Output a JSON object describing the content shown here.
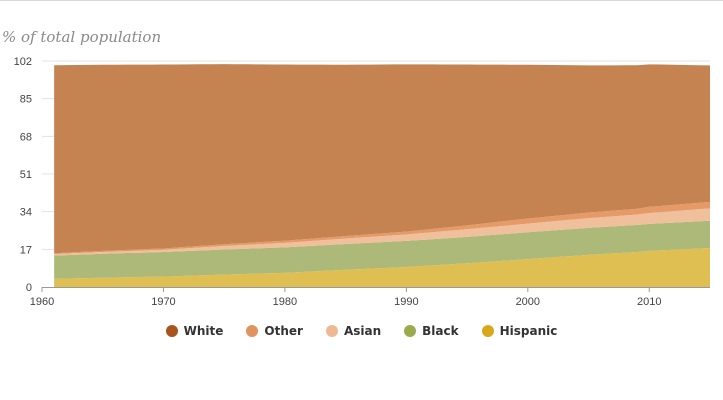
{
  "chart_data": {
    "type": "area",
    "stacked": true,
    "ylabel": "% of total population",
    "ylim": [
      0,
      102
    ],
    "yticks": [
      0,
      17,
      34,
      51,
      68,
      85,
      102
    ],
    "xlim": [
      1960,
      2015
    ],
    "xticks": [
      1960,
      1970,
      1980,
      1990,
      2000,
      2010
    ],
    "grid": true,
    "legend_position": "bottom",
    "x": [
      1960,
      1965,
      1970,
      1975,
      1980,
      1985,
      1990,
      1995,
      2000,
      2005,
      2009,
      2010,
      2015
    ],
    "series": [
      {
        "name": "Hispanic",
        "color": "#e0bf52",
        "values": [
          3.5,
          4.2,
          4.7,
          5.6,
          6.4,
          7.8,
          9.0,
          10.7,
          12.6,
          14.5,
          15.8,
          16.3,
          17.6
        ]
      },
      {
        "name": "Black",
        "color": "#adb978",
        "values": [
          10.5,
          10.8,
          11.1,
          11.3,
          11.5,
          11.6,
          11.8,
          11.9,
          12.1,
          12.2,
          12.2,
          12.2,
          12.3
        ]
      },
      {
        "name": "Asian",
        "color": "#f0c09c",
        "values": [
          0.6,
          0.8,
          1.0,
          1.6,
          2.0,
          2.5,
          2.9,
          3.5,
          3.9,
          4.4,
          4.7,
          4.9,
          5.6
        ]
      },
      {
        "name": "Other",
        "color": "#e59a67",
        "values": [
          0.4,
          0.5,
          0.6,
          0.8,
          1.0,
          1.1,
          1.3,
          1.7,
          2.3,
          2.5,
          2.6,
          2.8,
          2.9
        ]
      },
      {
        "name": "White",
        "color": "#c48350",
        "values": [
          85.0,
          84.0,
          83.0,
          81.3,
          79.5,
          77.3,
          75.5,
          72.6,
          69.4,
          66.4,
          64.8,
          64.3,
          61.6
        ]
      }
    ],
    "legend": [
      "White",
      "Other",
      "Asian",
      "Black",
      "Hispanic"
    ]
  }
}
